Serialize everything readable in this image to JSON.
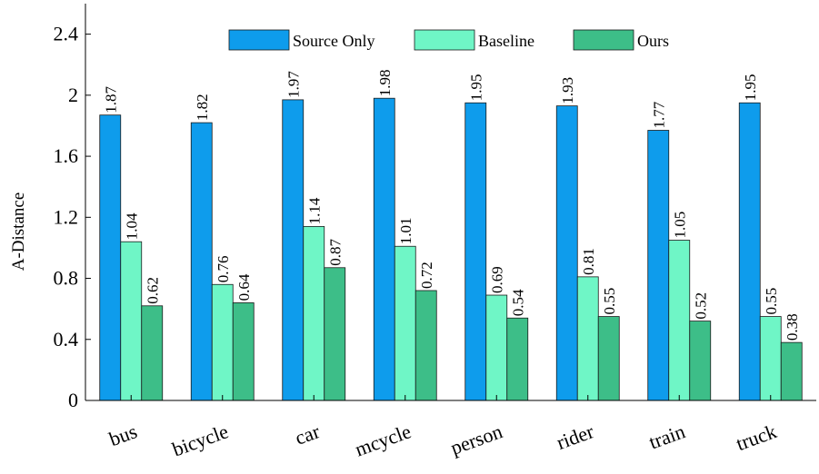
{
  "chart_data": {
    "type": "bar",
    "title": "",
    "xlabel": "",
    "ylabel": "A-Distance",
    "ylim": [
      0,
      2.6
    ],
    "yticks": [
      "0",
      "0.4",
      "0.8",
      "1.2",
      "1.6",
      "2",
      "2.4"
    ],
    "categories": [
      "bus",
      "bicycle",
      "car",
      "mcycle",
      "person",
      "rider",
      "train",
      "truck"
    ],
    "series": [
      {
        "name": "Source Only",
        "color": "#0e9cec",
        "values": [
          1.87,
          1.82,
          1.97,
          1.98,
          1.95,
          1.93,
          1.77,
          1.95
        ]
      },
      {
        "name": "Baseline",
        "color": "#6ff6c6",
        "values": [
          1.04,
          0.76,
          1.14,
          1.01,
          0.69,
          0.81,
          1.05,
          0.55
        ]
      },
      {
        "name": "Ours",
        "color": "#3dbe88",
        "values": [
          0.62,
          0.64,
          0.87,
          0.72,
          0.54,
          0.55,
          0.52,
          0.38
        ]
      }
    ],
    "legend_position": "top-right",
    "grid": false
  }
}
